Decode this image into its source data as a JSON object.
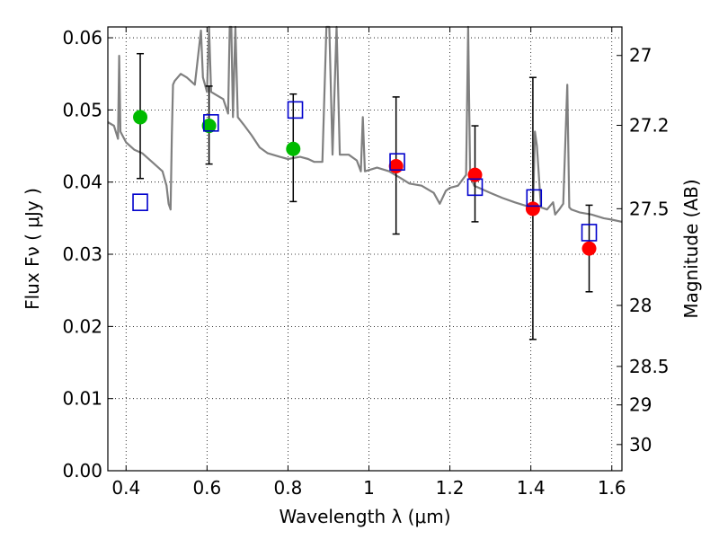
{
  "chart_data": {
    "type": "scatter",
    "title": "",
    "xlabel": "Wavelength  λ (μm)",
    "ylabel": "Flux  Fν  ( μJy )",
    "y2label": "Magnitude (AB)",
    "xlim": [
      0.355,
      1.625
    ],
    "ylim": [
      0.0,
      0.0615
    ],
    "xticks": [
      0.4,
      0.6,
      0.8,
      1.0,
      1.2,
      1.4,
      1.6
    ],
    "xtick_labels": [
      "0.4",
      "0.6",
      "0.8",
      "1",
      "1.2",
      "1.4",
      "1.6"
    ],
    "yticks": [
      0.0,
      0.01,
      0.02,
      0.03,
      0.04,
      0.05,
      0.06
    ],
    "ytick_labels": [
      "0.00",
      "0.01",
      "0.02",
      "0.03",
      "0.04",
      "0.05",
      "0.06"
    ],
    "y2ticks": [
      27,
      27.2,
      27.5,
      28,
      28.5,
      29,
      30
    ],
    "y2tick_labels": [
      "27",
      "27.2",
      "27.5",
      "28",
      "28.5",
      "29",
      "30"
    ],
    "grid": true,
    "colors": {
      "model": "#808080",
      "green": "#00bb00",
      "red": "#ff0000",
      "square": "#0000cc",
      "error": "#000000"
    },
    "model_spectrum": [
      [
        0.355,
        0.0483
      ],
      [
        0.37,
        0.0478
      ],
      [
        0.38,
        0.046
      ],
      [
        0.383,
        0.0575
      ],
      [
        0.386,
        0.047
      ],
      [
        0.4,
        0.0455
      ],
      [
        0.42,
        0.0445
      ],
      [
        0.44,
        0.044
      ],
      [
        0.47,
        0.0425
      ],
      [
        0.49,
        0.0415
      ],
      [
        0.5,
        0.0395
      ],
      [
        0.505,
        0.037
      ],
      [
        0.51,
        0.0362
      ],
      [
        0.513,
        0.0465
      ],
      [
        0.516,
        0.0535
      ],
      [
        0.52,
        0.054
      ],
      [
        0.535,
        0.055
      ],
      [
        0.55,
        0.0545
      ],
      [
        0.57,
        0.0535
      ],
      [
        0.585,
        0.061
      ],
      [
        0.59,
        0.0545
      ],
      [
        0.6,
        0.0525
      ],
      [
        0.605,
        0.0615
      ],
      [
        0.61,
        0.0525
      ],
      [
        0.625,
        0.052
      ],
      [
        0.64,
        0.0515
      ],
      [
        0.652,
        0.0495
      ],
      [
        0.656,
        0.0615
      ],
      [
        0.66,
        0.0615
      ],
      [
        0.664,
        0.049
      ],
      [
        0.67,
        0.0615
      ],
      [
        0.676,
        0.049
      ],
      [
        0.69,
        0.048
      ],
      [
        0.71,
        0.0465
      ],
      [
        0.73,
        0.0448
      ],
      [
        0.75,
        0.044
      ],
      [
        0.78,
        0.0435
      ],
      [
        0.8,
        0.0432
      ],
      [
        0.83,
        0.0435
      ],
      [
        0.85,
        0.0432
      ],
      [
        0.865,
        0.0428
      ],
      [
        0.885,
        0.0428
      ],
      [
        0.895,
        0.0615
      ],
      [
        0.902,
        0.0615
      ],
      [
        0.91,
        0.0438
      ],
      [
        0.92,
        0.0615
      ],
      [
        0.928,
        0.0438
      ],
      [
        0.95,
        0.0438
      ],
      [
        0.97,
        0.043
      ],
      [
        0.98,
        0.0415
      ],
      [
        0.985,
        0.049
      ],
      [
        0.99,
        0.0415
      ],
      [
        1.02,
        0.042
      ],
      [
        1.05,
        0.0415
      ],
      [
        1.08,
        0.0405
      ],
      [
        1.1,
        0.0398
      ],
      [
        1.13,
        0.0395
      ],
      [
        1.16,
        0.0385
      ],
      [
        1.175,
        0.037
      ],
      [
        1.19,
        0.0388
      ],
      [
        1.2,
        0.0392
      ],
      [
        1.22,
        0.0395
      ],
      [
        1.24,
        0.041
      ],
      [
        1.245,
        0.0615
      ],
      [
        1.25,
        0.041
      ],
      [
        1.26,
        0.0395
      ],
      [
        1.3,
        0.0385
      ],
      [
        1.33,
        0.0378
      ],
      [
        1.36,
        0.0372
      ],
      [
        1.4,
        0.0365
      ],
      [
        1.405,
        0.0355
      ],
      [
        1.41,
        0.047
      ],
      [
        1.415,
        0.045
      ],
      [
        1.425,
        0.0365
      ],
      [
        1.44,
        0.0362
      ],
      [
        1.455,
        0.0372
      ],
      [
        1.46,
        0.0355
      ],
      [
        1.47,
        0.0362
      ],
      [
        1.48,
        0.037
      ],
      [
        1.49,
        0.0535
      ],
      [
        1.495,
        0.0365
      ],
      [
        1.5,
        0.0362
      ],
      [
        1.52,
        0.0358
      ],
      [
        1.55,
        0.0355
      ],
      [
        1.58,
        0.035
      ],
      [
        1.6,
        0.0348
      ],
      [
        1.625,
        0.0345
      ]
    ],
    "error_bars": [
      {
        "x": 0.435,
        "low": 0.0405,
        "high": 0.0578
      },
      {
        "x": 0.605,
        "low": 0.0425,
        "high": 0.0533
      },
      {
        "x": 0.813,
        "low": 0.0373,
        "high": 0.0522
      },
      {
        "x": 1.067,
        "low": 0.0328,
        "high": 0.0518
      },
      {
        "x": 1.262,
        "low": 0.0345,
        "high": 0.0478
      },
      {
        "x": 1.405,
        "low": 0.0182,
        "high": 0.0545
      },
      {
        "x": 1.544,
        "low": 0.0248,
        "high": 0.0368
      }
    ],
    "series": [
      {
        "marker": "circle",
        "color": "green",
        "points": [
          [
            0.435,
            0.049
          ],
          [
            0.605,
            0.0478
          ],
          [
            0.813,
            0.0446
          ]
        ]
      },
      {
        "marker": "circle",
        "color": "red",
        "points": [
          [
            1.067,
            0.0422
          ],
          [
            1.262,
            0.041
          ],
          [
            1.405,
            0.0363
          ],
          [
            1.544,
            0.0308
          ]
        ]
      },
      {
        "marker": "open-square",
        "color": "square",
        "points": [
          [
            0.435,
            0.0372
          ],
          [
            0.61,
            0.0482
          ],
          [
            0.818,
            0.05
          ],
          [
            1.07,
            0.0428
          ],
          [
            1.262,
            0.0393
          ],
          [
            1.408,
            0.0378
          ],
          [
            1.544,
            0.033
          ]
        ]
      }
    ]
  }
}
